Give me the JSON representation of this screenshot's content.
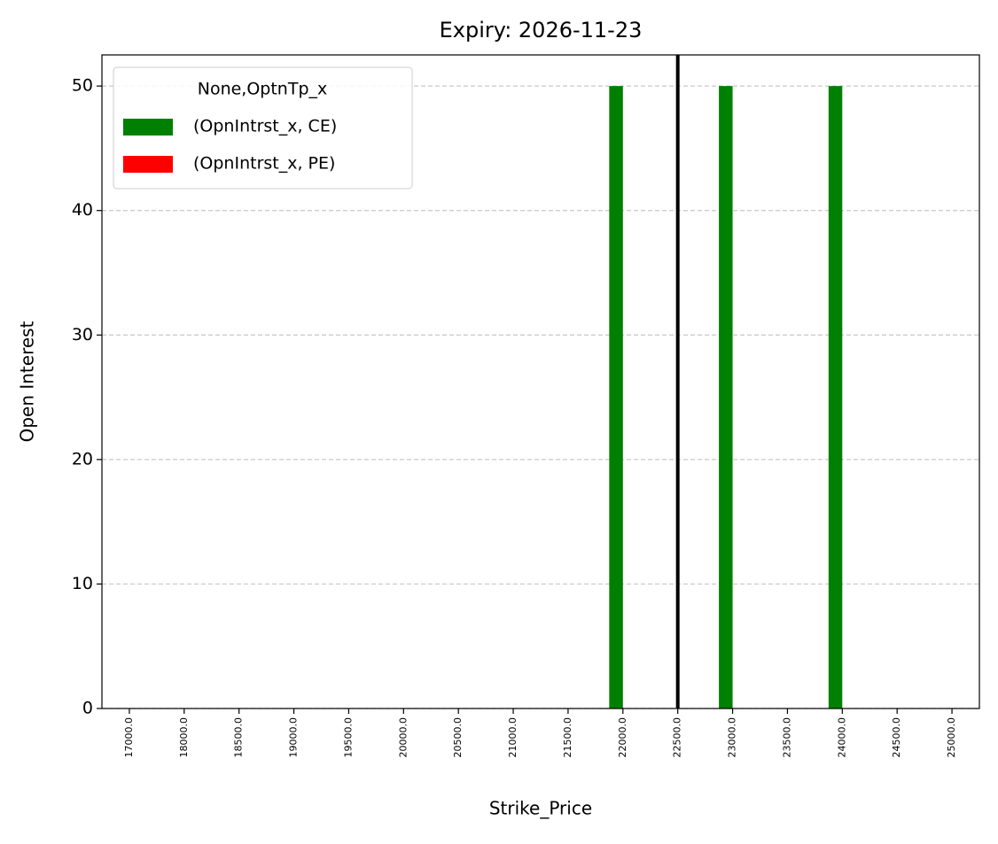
{
  "chart_data": {
    "type": "bar",
    "title": "Expiry: 2026-11-23",
    "x_label": "Strike_Price",
    "y_label": "Open Interest",
    "categories": [
      "17000.0",
      "18000.0",
      "18500.0",
      "19000.0",
      "19500.0",
      "20000.0",
      "20500.0",
      "21000.0",
      "21500.0",
      "22000.0",
      "22500.0",
      "23000.0",
      "23500.0",
      "24000.0",
      "24500.0",
      "25000.0"
    ],
    "series": [
      {
        "name": "(OpnIntrst_x, CE)",
        "color": "#008000",
        "values": [
          0,
          0,
          0,
          0,
          0,
          0,
          0,
          0,
          0,
          50,
          0,
          50,
          0,
          50,
          0,
          0
        ]
      },
      {
        "name": "(OpnIntrst_x, PE)",
        "color": "#ff0000",
        "values": [
          0,
          0,
          0,
          0,
          0,
          0,
          0,
          0,
          0,
          0,
          0,
          0,
          0,
          0,
          0,
          0
        ]
      }
    ],
    "legend_title": "None,OptnTp_x",
    "legend": "upper left",
    "vline_at": "22500.0",
    "vline_color": "#000000",
    "ylim": [
      0,
      52.5
    ],
    "yticks": [
      0,
      10,
      20,
      30,
      40,
      50
    ],
    "grid": true
  }
}
